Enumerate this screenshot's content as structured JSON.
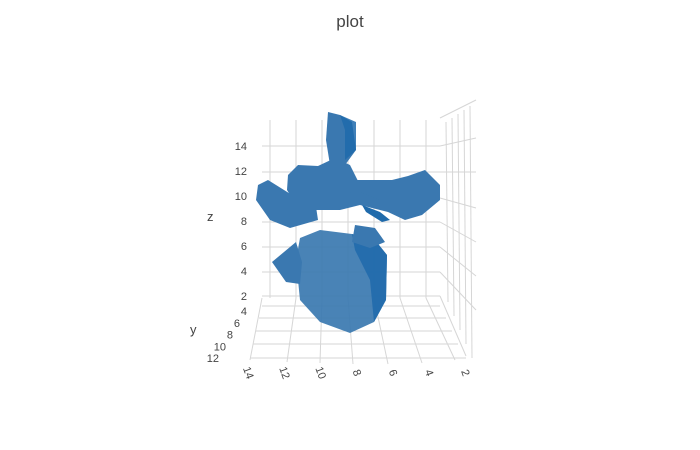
{
  "chart_data": {
    "type": "isosurface",
    "title": "plot",
    "xlabel": "",
    "ylabel": "y",
    "zlabel": "z",
    "x_ticks": [
      "14",
      "12",
      "10",
      "8",
      "6",
      "4",
      "2"
    ],
    "y_ticks": [
      "4",
      "6",
      "8",
      "10",
      "12"
    ],
    "z_ticks": [
      "2",
      "4",
      "6",
      "8",
      "10",
      "12",
      "14"
    ],
    "surface_color": "#3a78b0",
    "surface_color_dark": "#1f6aab",
    "grid": true,
    "legend": "none"
  }
}
